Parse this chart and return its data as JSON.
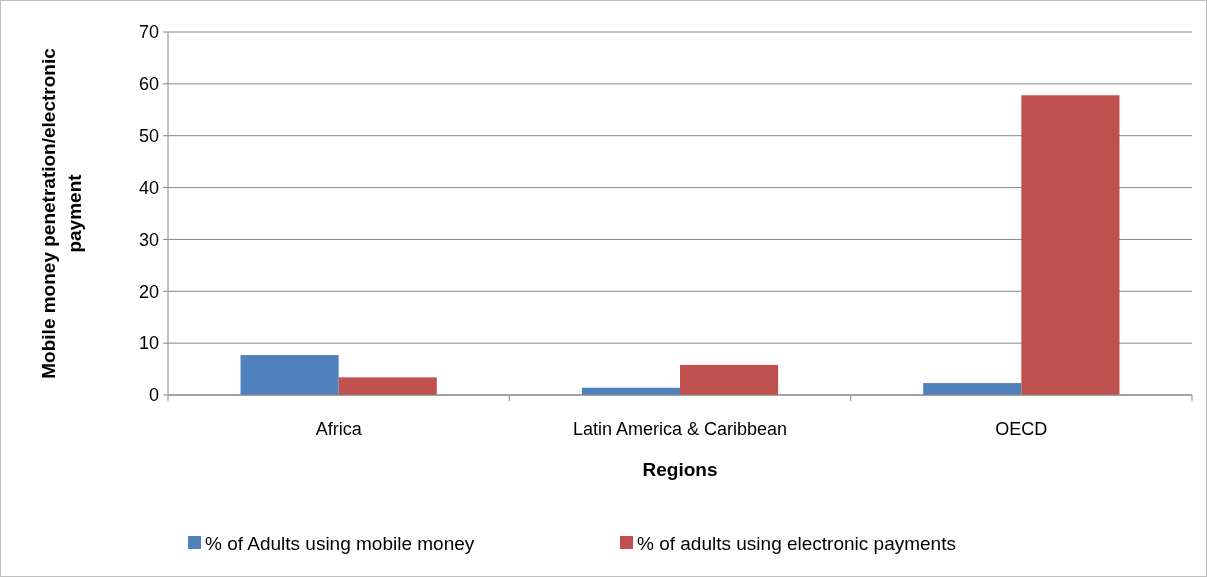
{
  "chart_data": {
    "type": "bar",
    "xlabel": "Regions",
    "ylabel": "Mobile money penetration/electronic payment",
    "categories": [
      "Africa",
      "Latin America & Caribbean",
      "OECD"
    ],
    "series": [
      {
        "name": "% of Adults using mobile money",
        "color": "#4f81bd",
        "values": [
          7.7,
          1.4,
          2.3
        ]
      },
      {
        "name": "% of adults using electronic payments",
        "color": "#c0504d",
        "values": [
          3.4,
          5.8,
          57.8
        ]
      }
    ],
    "ylim": [
      0,
      70
    ],
    "yticks": [
      0,
      10,
      20,
      30,
      40,
      50,
      60,
      70
    ],
    "grid": "y",
    "legend": "bottom"
  }
}
